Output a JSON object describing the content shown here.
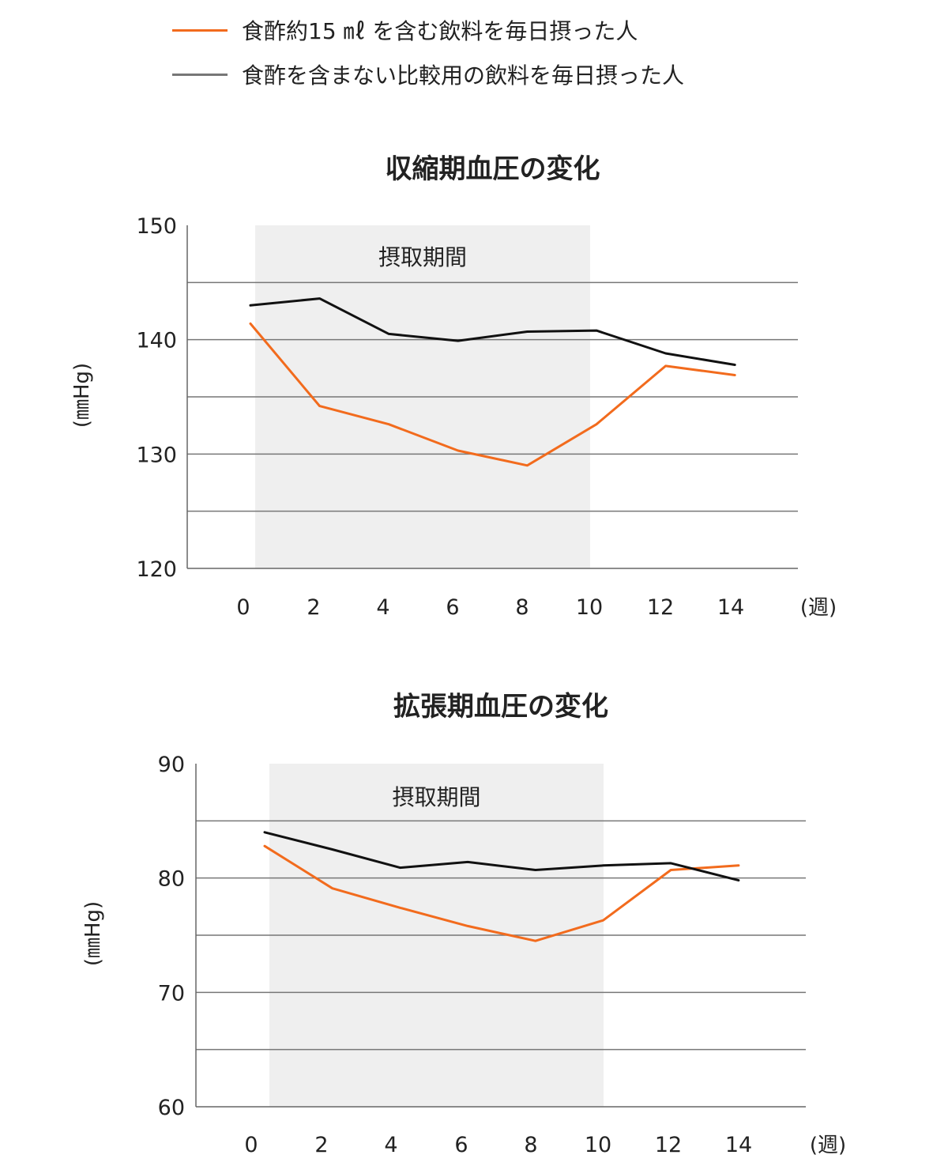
{
  "legend": {
    "items": [
      {
        "label": "食酢約15 ㎖ を含む飲料を毎日摂った人",
        "color": "#f26b1d"
      },
      {
        "label": "食酢を含まない比較用の飲料を毎日摂った人",
        "color": "#777777"
      }
    ]
  },
  "chart_data": [
    {
      "type": "line",
      "title": "収縮期血圧の変化",
      "ylabel": "(㎜Hg)",
      "xlabel": "(週)",
      "x_ticks": [
        0,
        2,
        4,
        6,
        8,
        10,
        12,
        14
      ],
      "y_ticks": [
        120,
        130,
        140,
        150
      ],
      "ylim": [
        120,
        150
      ],
      "xlim": [
        0,
        14
      ],
      "grid": "horizontal every 5",
      "shaded_region": {
        "x_start": 0,
        "x_end": 10,
        "label": "摂取期間"
      },
      "series": [
        {
          "color": "#f26b1d",
          "x": [
            0,
            2,
            4,
            6,
            8,
            10,
            12,
            14
          ],
          "values": [
            141.4,
            134.2,
            132.6,
            130.3,
            129.0,
            132.6,
            137.7,
            136.9
          ]
        },
        {
          "color": "#111111",
          "x": [
            0,
            2,
            4,
            6,
            8,
            10,
            12,
            14
          ],
          "values": [
            143.0,
            143.6,
            140.5,
            139.9,
            140.7,
            140.8,
            138.8,
            137.8
          ]
        }
      ]
    },
    {
      "type": "line",
      "title": "拡張期血圧の変化",
      "ylabel": "(㎜Hg)",
      "xlabel": "(週)",
      "x_ticks": [
        0,
        2,
        4,
        6,
        8,
        10,
        12,
        14
      ],
      "y_ticks": [
        60,
        70,
        80,
        90
      ],
      "ylim": [
        60,
        90
      ],
      "xlim": [
        0,
        14
      ],
      "grid": "horizontal every 5",
      "shaded_region": {
        "x_start": 0,
        "x_end": 10,
        "label": "摂取期間"
      },
      "series": [
        {
          "color": "#f26b1d",
          "x": [
            0,
            2,
            4,
            6,
            8,
            10,
            12,
            14
          ],
          "values": [
            82.8,
            79.1,
            77.4,
            75.8,
            74.5,
            76.3,
            80.7,
            81.1
          ]
        },
        {
          "color": "#111111",
          "x": [
            0,
            2,
            4,
            6,
            8,
            10,
            12,
            14
          ],
          "values": [
            84.0,
            82.5,
            80.9,
            81.4,
            80.7,
            81.1,
            81.3,
            79.8
          ]
        }
      ]
    }
  ]
}
